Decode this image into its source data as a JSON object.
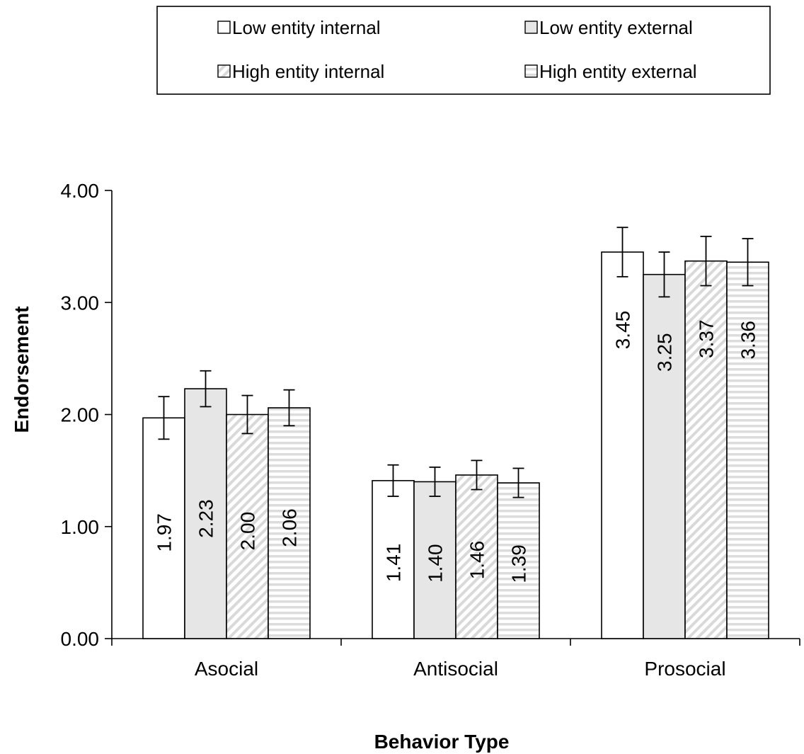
{
  "chart_data": {
    "type": "bar",
    "xlabel": "Behavior Type",
    "ylabel": "Endorsement",
    "ylim": [
      0,
      4
    ],
    "yticks": [
      "0.00",
      "1.00",
      "2.00",
      "3.00",
      "4.00"
    ],
    "categories": [
      "Asocial",
      "Antisocial",
      "Prosocial"
    ],
    "legend_position": "top",
    "series": [
      {
        "name": "Low entity internal",
        "values": [
          1.97,
          1.41,
          3.45
        ],
        "labels": [
          "1.97",
          "1.41",
          "3.45"
        ],
        "error": [
          0.19,
          0.14,
          0.22
        ],
        "fill": "#ffffff",
        "pattern": "none"
      },
      {
        "name": "Low entity external",
        "values": [
          2.23,
          1.4,
          3.25
        ],
        "labels": [
          "2.23",
          "1.40",
          "3.25"
        ],
        "error": [
          0.16,
          0.13,
          0.2
        ],
        "fill": "#e6e6e6",
        "pattern": "none"
      },
      {
        "name": "High entity internal",
        "values": [
          2.0,
          1.46,
          3.37
        ],
        "labels": [
          "2.00",
          "1.46",
          "3.37"
        ],
        "error": [
          0.17,
          0.13,
          0.22
        ],
        "fill": "#ffffff",
        "pattern": "diagonal"
      },
      {
        "name": "High entity external",
        "values": [
          2.06,
          1.39,
          3.36
        ],
        "labels": [
          "2.06",
          "1.39",
          "3.36"
        ],
        "error": [
          0.16,
          0.13,
          0.21
        ],
        "fill": "#ffffff",
        "pattern": "horizontal"
      }
    ]
  }
}
